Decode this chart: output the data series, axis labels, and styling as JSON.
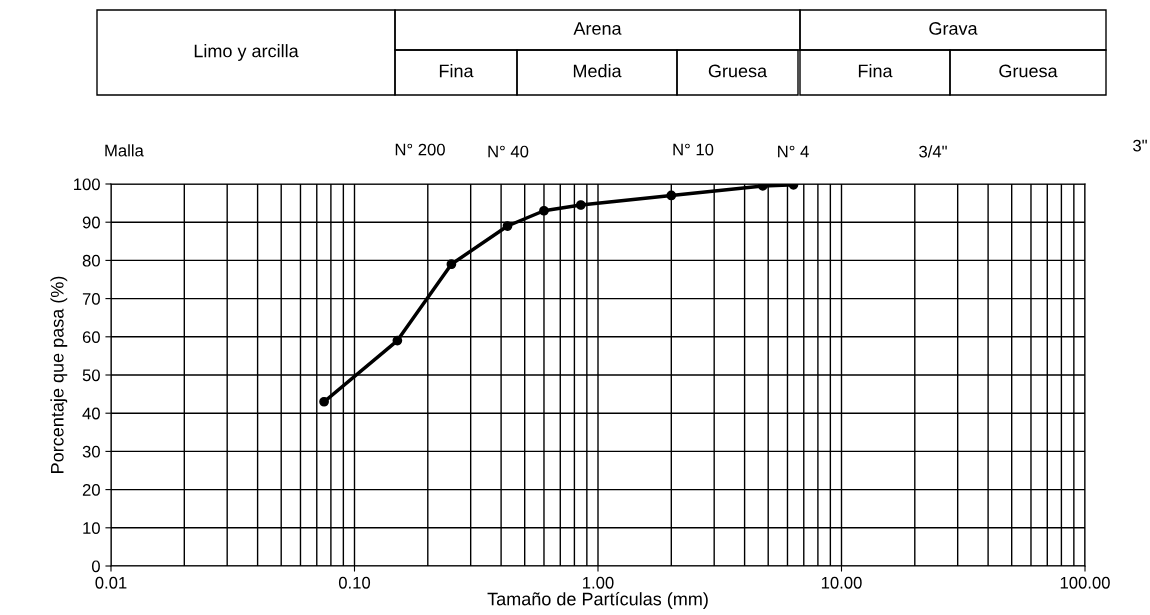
{
  "chart_data": {
    "type": "line",
    "xlabel": "Tamaño de Partículas (mm)",
    "ylabel": "Porcentaje que pasa (%)",
    "x": [
      0.075,
      0.15,
      0.25,
      0.425,
      0.6,
      0.85,
      2.0,
      4.75,
      6.35
    ],
    "series": [
      {
        "color": "#000000",
        "values": [
          43,
          59,
          79,
          89,
          93,
          94.5,
          97,
          99.5,
          99.8
        ]
      }
    ],
    "log": "x",
    "xlim": [
      0.01,
      100
    ],
    "ylim": [
      0,
      100
    ],
    "xticks": [
      {
        "value": 0.01,
        "label": "0.01"
      },
      {
        "value": 0.1,
        "label": "0.10"
      },
      {
        "value": 1,
        "label": "1.00"
      },
      {
        "value": 10,
        "label": "10.00"
      },
      {
        "value": 100,
        "label": "100.00"
      }
    ],
    "yticks": [
      0,
      10,
      20,
      30,
      40,
      50,
      60,
      70,
      80,
      90,
      100
    ],
    "grid": true,
    "marker": "circle",
    "line_style": "solid",
    "legend": false,
    "annotations": [
      "Limo y arcilla",
      "Arena",
      "Fina",
      "Media",
      "Gruesa",
      "Grava",
      "Fina",
      "Gruesa",
      "Malla",
      "N° 200",
      "N° 40",
      "N° 10",
      "N° 4",
      "3/4\"",
      "3\""
    ]
  }
}
